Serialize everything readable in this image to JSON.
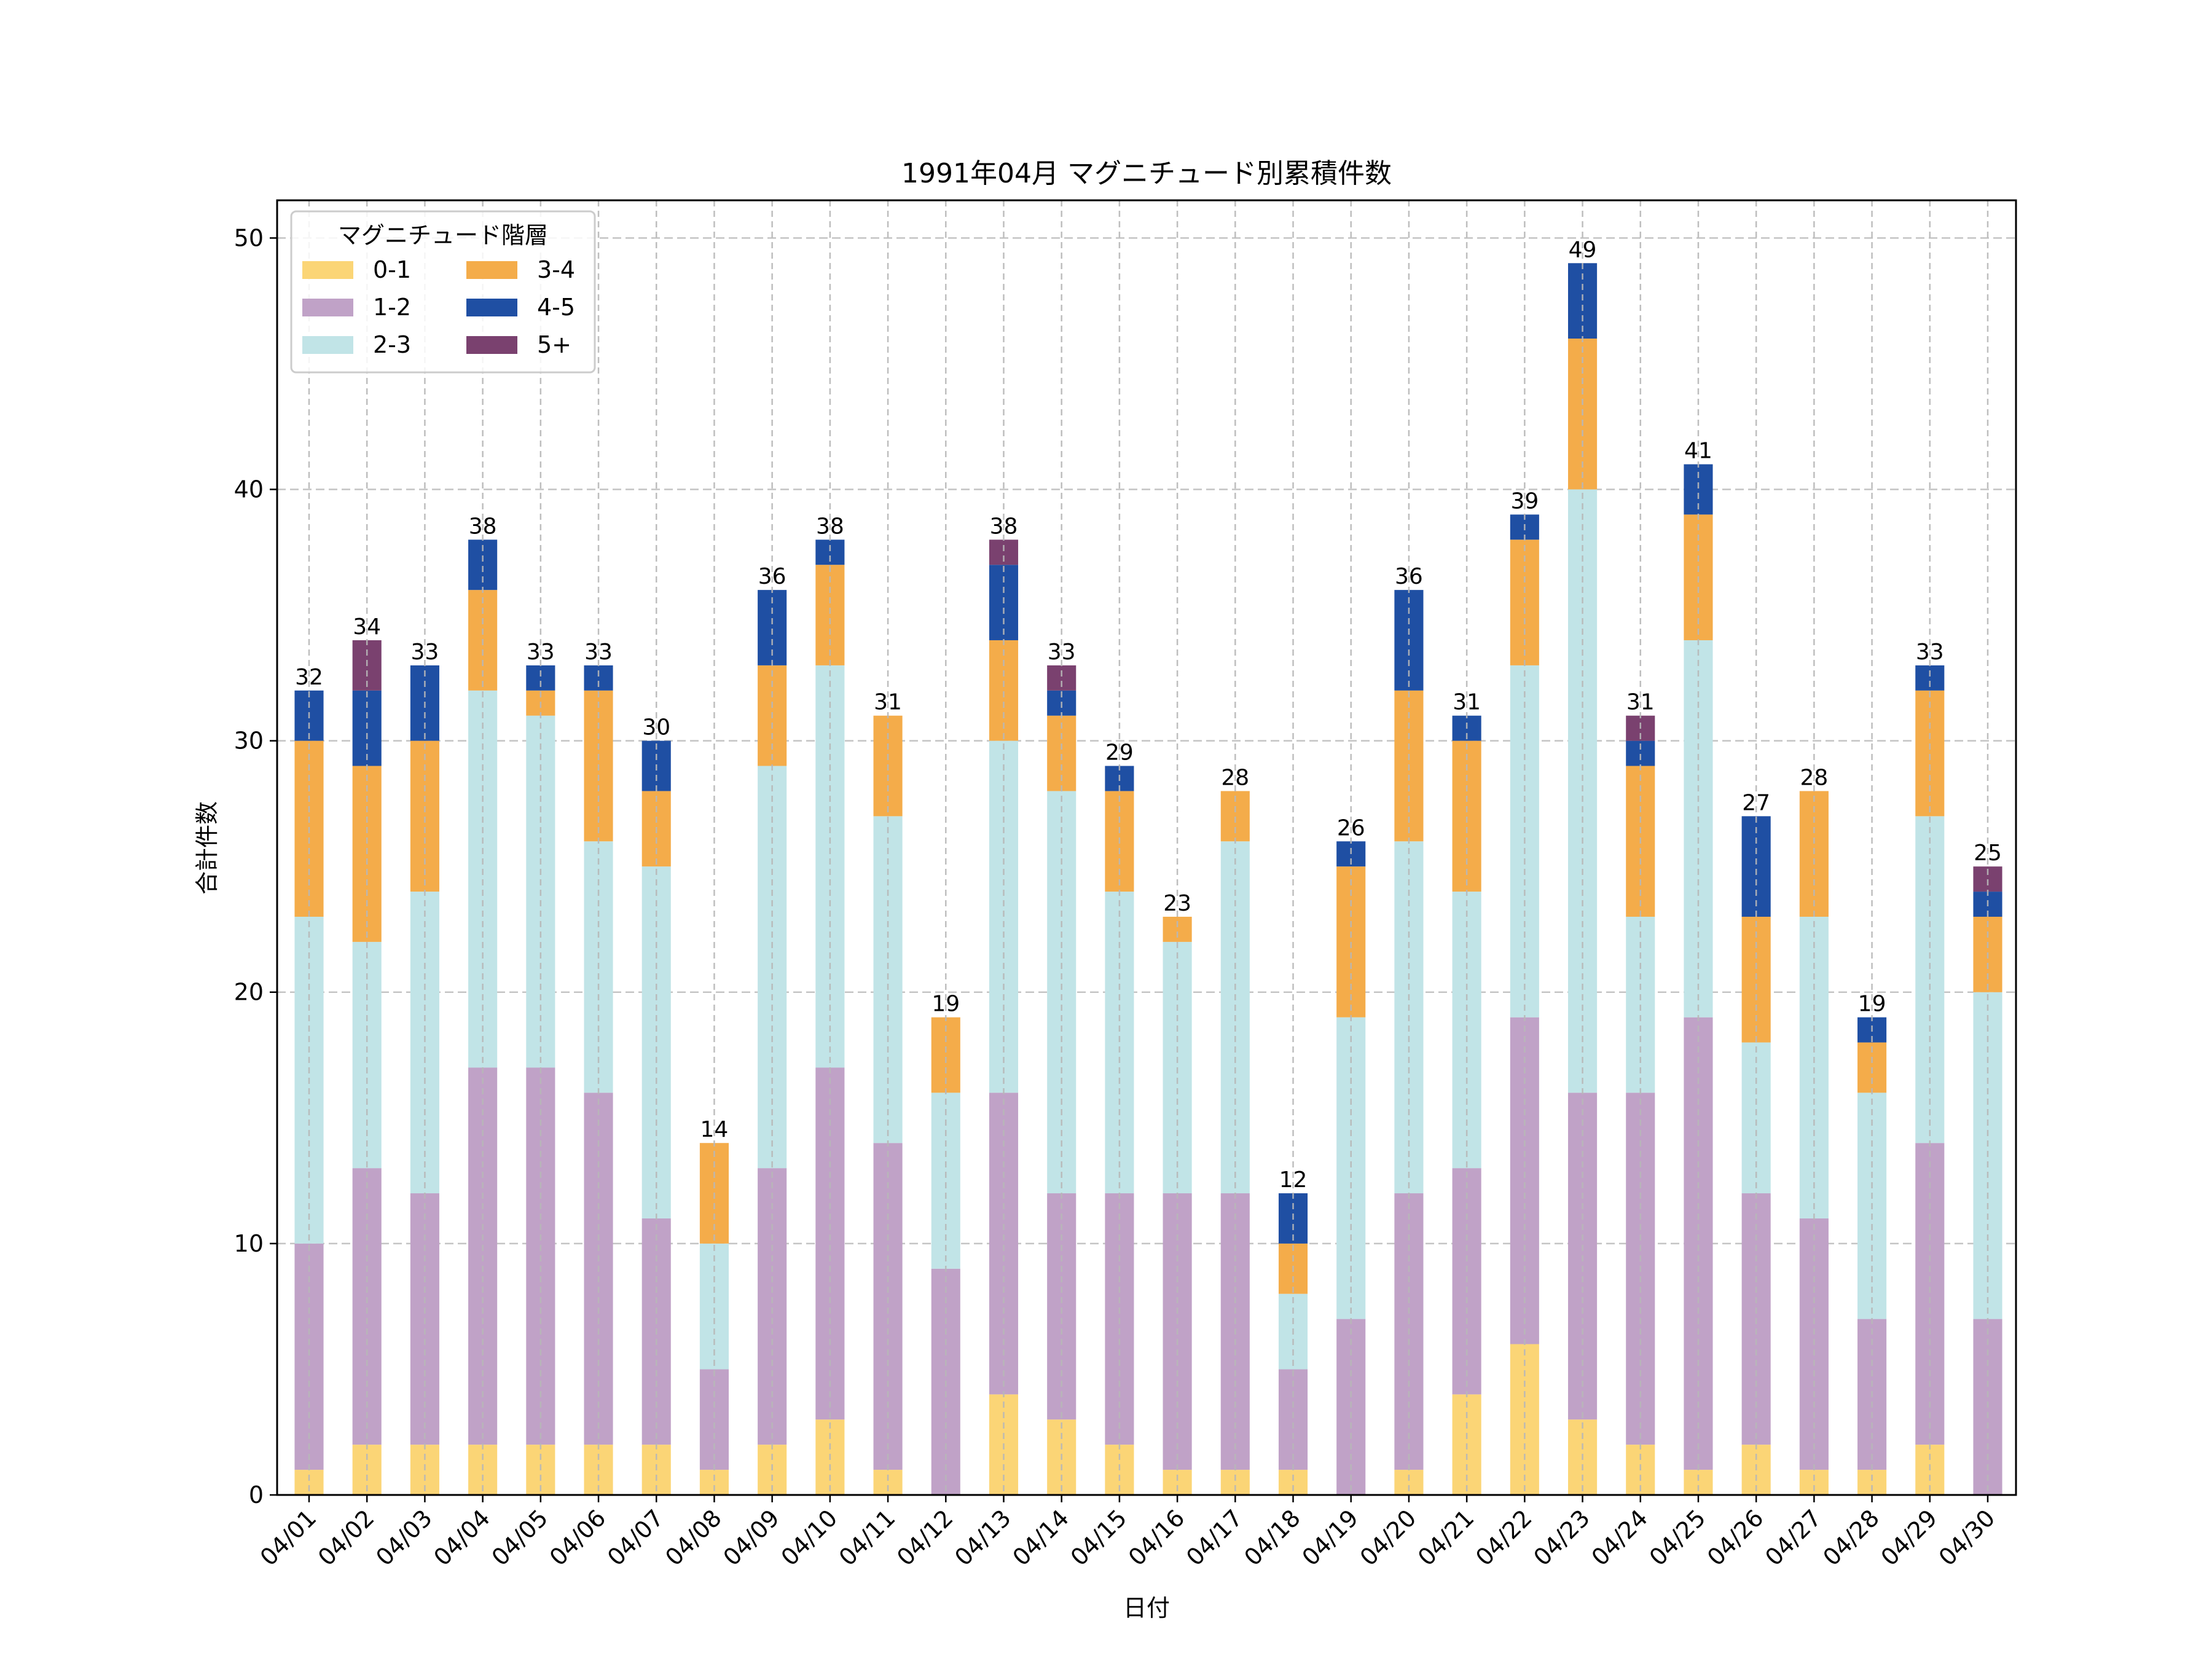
{
  "chart_data": {
    "type": "bar",
    "stacked": true,
    "title": "1991年04月 マグニチュード別累積件数",
    "xlabel": "日付",
    "ylabel": "合計件数",
    "ylim": [
      0,
      51.5
    ],
    "yticks": [
      0,
      10,
      20,
      30,
      40,
      50
    ],
    "grid": true,
    "legend": {
      "title": "マグニチュード階層",
      "placement": "top-left",
      "columns": 2
    },
    "categories": [
      "04/01",
      "04/02",
      "04/03",
      "04/04",
      "04/05",
      "04/06",
      "04/07",
      "04/08",
      "04/09",
      "04/10",
      "04/11",
      "04/12",
      "04/13",
      "04/14",
      "04/15",
      "04/16",
      "04/17",
      "04/18",
      "04/19",
      "04/20",
      "04/21",
      "04/22",
      "04/23",
      "04/24",
      "04/25",
      "04/26",
      "04/27",
      "04/28",
      "04/29",
      "04/30"
    ],
    "series": [
      {
        "name": "0-1",
        "color": "#fbd576",
        "values": [
          1,
          2,
          2,
          2,
          2,
          2,
          2,
          1,
          2,
          3,
          1,
          0,
          4,
          3,
          2,
          1,
          1,
          1,
          0,
          1,
          4,
          6,
          3,
          2,
          1,
          2,
          1,
          1,
          2,
          0
        ]
      },
      {
        "name": "1-2",
        "color": "#c0a2c7",
        "values": [
          9,
          11,
          10,
          15,
          15,
          14,
          9,
          4,
          11,
          14,
          13,
          9,
          12,
          9,
          10,
          11,
          11,
          4,
          7,
          11,
          9,
          13,
          13,
          14,
          18,
          10,
          10,
          6,
          12,
          7
        ]
      },
      {
        "name": "2-3",
        "color": "#c1e4e7",
        "values": [
          13,
          9,
          12,
          15,
          14,
          10,
          14,
          5,
          16,
          16,
          13,
          7,
          14,
          16,
          12,
          10,
          14,
          3,
          12,
          14,
          11,
          14,
          24,
          7,
          15,
          6,
          12,
          9,
          13,
          13
        ]
      },
      {
        "name": "3-4",
        "color": "#f4ac4a",
        "values": [
          7,
          7,
          6,
          4,
          1,
          6,
          3,
          4,
          4,
          4,
          4,
          3,
          4,
          3,
          4,
          1,
          2,
          2,
          6,
          6,
          6,
          5,
          6,
          6,
          5,
          5,
          5,
          2,
          5,
          3
        ]
      },
      {
        "name": "4-5",
        "color": "#1f4fa3",
        "values": [
          2,
          3,
          3,
          2,
          1,
          1,
          2,
          0,
          3,
          1,
          0,
          0,
          3,
          1,
          1,
          0,
          0,
          2,
          1,
          4,
          1,
          1,
          3,
          1,
          2,
          4,
          0,
          1,
          1,
          1
        ]
      },
      {
        "name": "5+",
        "color": "#7a416f",
        "values": [
          0,
          2,
          0,
          0,
          0,
          0,
          0,
          0,
          0,
          0,
          0,
          0,
          1,
          1,
          0,
          0,
          0,
          0,
          0,
          0,
          0,
          0,
          0,
          1,
          0,
          0,
          0,
          0,
          0,
          1
        ]
      }
    ],
    "totals": [
      32,
      34,
      33,
      38,
      33,
      33,
      30,
      14,
      36,
      38,
      31,
      19,
      38,
      33,
      29,
      23,
      28,
      12,
      26,
      36,
      31,
      39,
      49,
      31,
      41,
      27,
      28,
      19,
      33,
      25
    ]
  }
}
